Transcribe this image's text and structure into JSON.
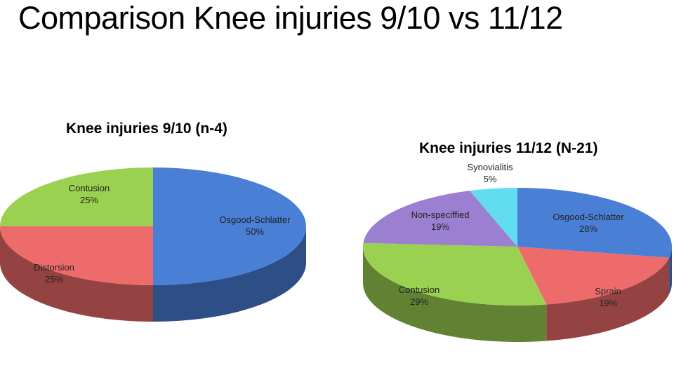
{
  "page_title": "Comparison Knee injuries 9/10 vs 11/12",
  "colors": {
    "blue": "#4a7fd6",
    "red": "#ee6b6b",
    "green": "#9bd150",
    "purple": "#9b7fd0",
    "cyan": "#62ddf0"
  },
  "chart_data": [
    {
      "type": "pie",
      "title": "Knee injuries 9/10 (n-4)",
      "slices": [
        {
          "label": "Osgood-Schlatter",
          "value": 50,
          "value_label": "50%",
          "color": "#4a7fd6"
        },
        {
          "label": "Distorsion",
          "value": 25,
          "value_label": "25%",
          "color": "#ee6b6b"
        },
        {
          "label": "Contusion",
          "value": 25,
          "value_label": "25%",
          "color": "#9bd150"
        }
      ]
    },
    {
      "type": "pie",
      "title": "Knee injuries 11/12 (N-21)",
      "slices": [
        {
          "label": "Osgood-Schlatter",
          "value": 28,
          "value_label": "28%",
          "color": "#4a7fd6"
        },
        {
          "label": "Sprain",
          "value": 19,
          "value_label": "19%",
          "color": "#ee6b6b"
        },
        {
          "label": "Contusion",
          "value": 29,
          "value_label": "29%",
          "color": "#9bd150"
        },
        {
          "label": "Non-speciffied",
          "value": 19,
          "value_label": "19%",
          "color": "#9b7fd0"
        },
        {
          "label": "Synovialitis",
          "value": 5,
          "value_label": "5%",
          "color": "#62ddf0"
        }
      ]
    }
  ]
}
